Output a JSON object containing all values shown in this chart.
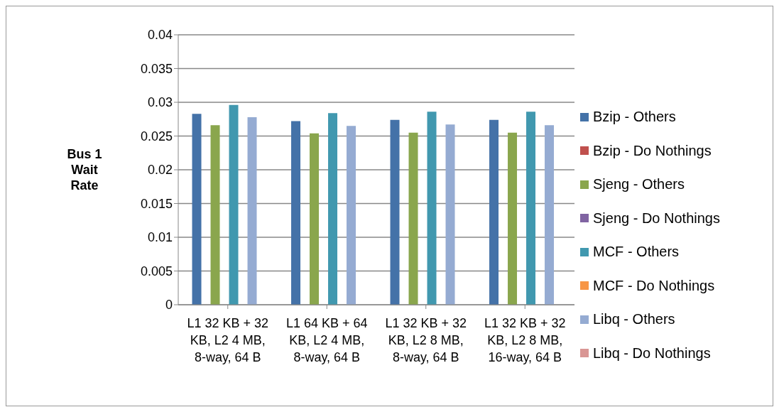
{
  "chart_data": {
    "type": "bar",
    "ylabel": "Bus 1 Wait Rate",
    "categories": [
      "L1 32 KB + 32 KB, L2 4 MB, 8-way, 64 B",
      "L1 64 KB + 64 KB, L2 4 MB, 8-way, 64 B",
      "L1 32 KB + 32 KB, L2 8 MB, 8-way, 64 B",
      "L1 32 KB + 32 KB, L2 8 MB, 16-way, 64 B"
    ],
    "series": [
      {
        "name": "Bzip - Others",
        "color": "#4472a8",
        "values": [
          0.0283,
          0.0272,
          0.0274,
          0.0274
        ]
      },
      {
        "name": "Bzip - Do Nothings",
        "color": "#c0504d",
        "values": [
          0,
          0,
          0,
          0
        ]
      },
      {
        "name": "Sjeng - Others",
        "color": "#8aa64d",
        "values": [
          0.0266,
          0.0254,
          0.0255,
          0.0255
        ]
      },
      {
        "name": "Sjeng - Do Nothings",
        "color": "#8064a2",
        "values": [
          0,
          0,
          0,
          0
        ]
      },
      {
        "name": "MCF - Others",
        "color": "#4198af",
        "values": [
          0.0296,
          0.0284,
          0.0286,
          0.0286
        ]
      },
      {
        "name": "MCF - Do Nothings",
        "color": "#f79646",
        "values": [
          0,
          0,
          0,
          0
        ]
      },
      {
        "name": "Libq - Others",
        "color": "#95abd2",
        "values": [
          0.0278,
          0.0265,
          0.0267,
          0.0266
        ]
      },
      {
        "name": "Libq - Do Nothings",
        "color": "#d99694",
        "values": [
          0,
          0,
          0,
          0
        ]
      }
    ],
    "ylim": [
      0,
      0.04
    ],
    "yticks": [
      0,
      0.005,
      0.01,
      0.015,
      0.02,
      0.025,
      0.03,
      0.035,
      0.04
    ],
    "grid": "y",
    "legend": "right"
  }
}
